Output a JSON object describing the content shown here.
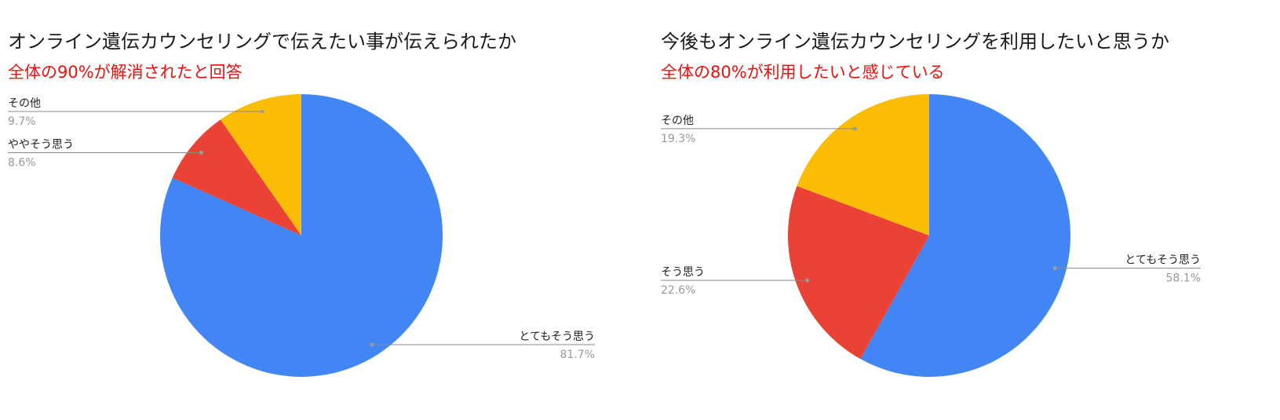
{
  "chart_data": [
    {
      "type": "pie",
      "title": "オンライン遺伝カウンセリングで伝えたい事が伝えられたか",
      "subtitle": "全体の90%が解消されたと回答",
      "slices": [
        {
          "label": "とてもそう思う",
          "value": 81.7,
          "color": "#4285f4"
        },
        {
          "label": "ややそう思う",
          "value": 8.6,
          "color": "#ea4335"
        },
        {
          "label": "その他",
          "value": 9.7,
          "color": "#fbbc04"
        }
      ]
    },
    {
      "type": "pie",
      "title": "今後もオンライン遺伝カウンセリングを利用したいと思うか",
      "subtitle": "全体の80%が利用したいと感じている",
      "slices": [
        {
          "label": "とてもそう思う",
          "value": 58.1,
          "color": "#4285f4"
        },
        {
          "label": "そう思う",
          "value": 22.6,
          "color": "#ea4335"
        },
        {
          "label": "その他",
          "value": 19.3,
          "color": "#fbbc04"
        }
      ]
    }
  ]
}
